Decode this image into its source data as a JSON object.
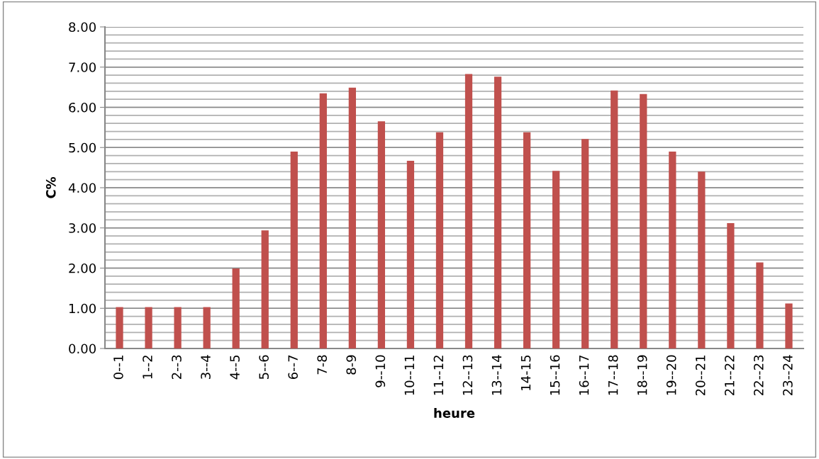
{
  "chart_data": {
    "type": "bar",
    "xlabel": "heure",
    "ylabel": "C%",
    "categories": [
      "0--1",
      "1--2",
      "2--3",
      "3--4",
      "4--5",
      "5--6",
      "6--7",
      "7-8",
      "8-9",
      "9--10",
      "10--11",
      "11--12",
      "12--13",
      "13--14",
      "14-15",
      "15--16",
      "16--17",
      "17--18",
      "18--19",
      "19--20",
      "20--21",
      "21--22",
      "22--23",
      "23--24"
    ],
    "values": [
      1.03,
      1.03,
      1.03,
      1.03,
      1.99,
      2.94,
      4.9,
      6.35,
      6.49,
      5.65,
      4.67,
      5.38,
      6.83,
      6.76,
      5.38,
      4.42,
      5.21,
      6.42,
      6.33,
      4.9,
      4.4,
      3.12,
      2.14,
      1.12
    ],
    "color": "#c0504d",
    "ylim": [
      0,
      8
    ],
    "yticks": [
      {
        "value": 0,
        "label": "0.00"
      },
      {
        "value": 0.2,
        "label": null
      },
      {
        "value": 0.4,
        "label": null
      },
      {
        "value": 0.6,
        "label": null
      },
      {
        "value": 0.8,
        "label": null
      },
      {
        "value": 1,
        "label": "1.00"
      },
      {
        "value": 1.2,
        "label": null
      },
      {
        "value": 1.4,
        "label": null
      },
      {
        "value": 1.6,
        "label": null
      },
      {
        "value": 1.8,
        "label": null
      },
      {
        "value": 2,
        "label": "2.00"
      },
      {
        "value": 2.2,
        "label": null
      },
      {
        "value": 2.4,
        "label": null
      },
      {
        "value": 2.6,
        "label": null
      },
      {
        "value": 2.8,
        "label": null
      },
      {
        "value": 3,
        "label": "3.00"
      },
      {
        "value": 3.2,
        "label": null
      },
      {
        "value": 3.4,
        "label": null
      },
      {
        "value": 3.6,
        "label": null
      },
      {
        "value": 3.8,
        "label": null
      },
      {
        "value": 4,
        "label": "4.00"
      },
      {
        "value": 4.2,
        "label": null
      },
      {
        "value": 4.4,
        "label": null
      },
      {
        "value": 4.6,
        "label": null
      },
      {
        "value": 4.8,
        "label": null
      },
      {
        "value": 5,
        "label": "5.00"
      },
      {
        "value": 5.2,
        "label": null
      },
      {
        "value": 5.4,
        "label": null
      },
      {
        "value": 5.6,
        "label": null
      },
      {
        "value": 5.8,
        "label": null
      },
      {
        "value": 6,
        "label": "6.00"
      },
      {
        "value": 6.2,
        "label": null
      },
      {
        "value": 6.4,
        "label": null
      },
      {
        "value": 6.6,
        "label": null
      },
      {
        "value": 6.8,
        "label": null
      },
      {
        "value": 7,
        "label": "7.00"
      },
      {
        "value": 7.2,
        "label": null
      },
      {
        "value": 7.4,
        "label": null
      },
      {
        "value": 7.6,
        "label": null
      },
      {
        "value": 7.8,
        "label": null
      },
      {
        "value": 8,
        "label": "8.00"
      }
    ],
    "grid": "y"
  }
}
